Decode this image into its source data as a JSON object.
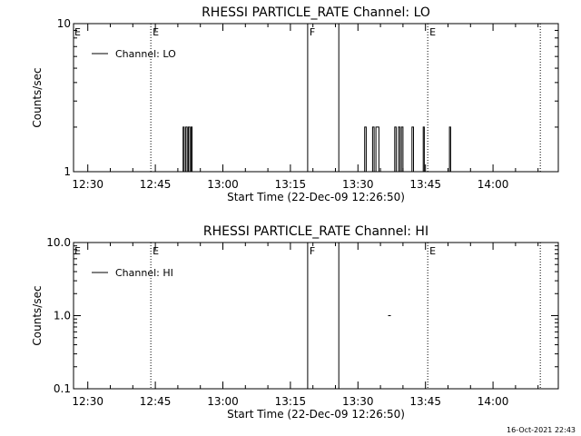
{
  "footer": {
    "timestamp": "16-Oct-2021 22:43"
  },
  "chart_data": [
    {
      "type": "line",
      "title": "RHESSI PARTICLE_RATE Channel: LO",
      "xlabel": "Start Time (22-Dec-09 12:26:50)",
      "ylabel": "Counts/sec",
      "yscale": "log",
      "ylim": [
        1,
        10
      ],
      "yticks": [
        {
          "v": 1,
          "label": "1"
        },
        {
          "v": 10,
          "label": "10"
        }
      ],
      "xlim": [
        "12:26:50",
        "14:14:30"
      ],
      "xticks": [
        "12:30",
        "12:45",
        "13:00",
        "13:15",
        "13:30",
        "13:45",
        "14:00"
      ],
      "grid": false,
      "legend": {
        "label": "Channel: LO",
        "position": "top-left"
      },
      "vlines": [
        {
          "t": "12:44:00",
          "style": "dotted",
          "label": "E"
        },
        {
          "t": "13:18:50",
          "style": "solid",
          "label": "F"
        },
        {
          "t": "13:25:45",
          "style": "solid",
          "label": ""
        },
        {
          "t": "13:45:30",
          "style": "dotted",
          "label": "E"
        },
        {
          "t": "14:10:30",
          "style": "dotted",
          "label": ""
        }
      ],
      "series": [
        {
          "name": "Channel: LO",
          "segments": [
            [
              [
                "12:51:10",
                1
              ],
              [
                "12:51:10",
                2
              ],
              [
                "12:51:25",
                2
              ],
              [
                "12:51:25",
                1
              ],
              [
                "12:51:45",
                1
              ],
              [
                "12:51:45",
                2
              ],
              [
                "12:52:05",
                2
              ],
              [
                "12:52:05",
                1
              ],
              [
                "12:52:20",
                1
              ],
              [
                "12:52:20",
                2
              ],
              [
                "12:52:40",
                2
              ],
              [
                "12:52:40",
                1
              ],
              [
                "12:52:55",
                1
              ],
              [
                "12:52:55",
                2
              ],
              [
                "12:53:10",
                2
              ],
              [
                "12:53:10",
                1
              ]
            ],
            [
              [
                "13:31:30",
                1
              ],
              [
                "13:31:30",
                2
              ],
              [
                "13:31:50",
                2
              ],
              [
                "13:31:50",
                1
              ],
              [
                "13:33:15",
                1
              ],
              [
                "13:33:15",
                2
              ],
              [
                "13:33:35",
                2
              ],
              [
                "13:33:35",
                1
              ],
              [
                "13:34:00",
                1
              ],
              [
                "13:34:00",
                2
              ],
              [
                "13:34:40",
                2
              ],
              [
                "13:34:40",
                1
              ]
            ],
            [
              [
                "13:38:10",
                1
              ],
              [
                "13:38:10",
                2
              ],
              [
                "13:38:30",
                2
              ],
              [
                "13:38:30",
                1
              ],
              [
                "13:39:00",
                1
              ],
              [
                "13:39:00",
                2
              ],
              [
                "13:39:20",
                2
              ],
              [
                "13:39:20",
                1
              ],
              [
                "13:39:40",
                1
              ],
              [
                "13:39:40",
                2
              ],
              [
                "13:40:00",
                2
              ],
              [
                "13:40:00",
                1
              ],
              [
                "13:42:00",
                1
              ],
              [
                "13:42:00",
                2
              ],
              [
                "13:42:20",
                2
              ],
              [
                "13:42:20",
                1
              ]
            ],
            [
              [
                "13:44:30",
                1
              ],
              [
                "13:44:30",
                2
              ],
              [
                "13:44:45",
                2
              ],
              [
                "13:44:45",
                1
              ]
            ],
            [
              [
                "13:50:20",
                1
              ],
              [
                "13:50:20",
                2
              ],
              [
                "13:50:35",
                2
              ],
              [
                "13:50:35",
                1
              ]
            ]
          ]
        }
      ]
    },
    {
      "type": "scatter",
      "title": "RHESSI PARTICLE_RATE Channel: HI",
      "xlabel": "Start Time (22-Dec-09 12:26:50)",
      "ylabel": "Counts/sec",
      "yscale": "log",
      "ylim": [
        0.1,
        10
      ],
      "yticks": [
        {
          "v": 0.1,
          "label": "0.1"
        },
        {
          "v": 1,
          "label": "1.0"
        },
        {
          "v": 10,
          "label": "10.0"
        }
      ],
      "xlim": [
        "12:26:50",
        "14:14:30"
      ],
      "xticks": [
        "12:30",
        "12:45",
        "13:00",
        "13:15",
        "13:30",
        "13:45",
        "14:00"
      ],
      "grid": false,
      "legend": {
        "label": "Channel: HI",
        "position": "top-left"
      },
      "vlines": [
        {
          "t": "12:44:00",
          "style": "dotted",
          "label": "E"
        },
        {
          "t": "13:18:50",
          "style": "solid",
          "label": "F"
        },
        {
          "t": "13:25:45",
          "style": "solid",
          "label": ""
        },
        {
          "t": "13:45:30",
          "style": "dotted",
          "label": "E"
        },
        {
          "t": "14:10:30",
          "style": "dotted",
          "label": ""
        }
      ],
      "series": [
        {
          "name": "Channel: HI",
          "points": [
            [
              "13:37:00",
              1
            ]
          ]
        }
      ]
    }
  ]
}
